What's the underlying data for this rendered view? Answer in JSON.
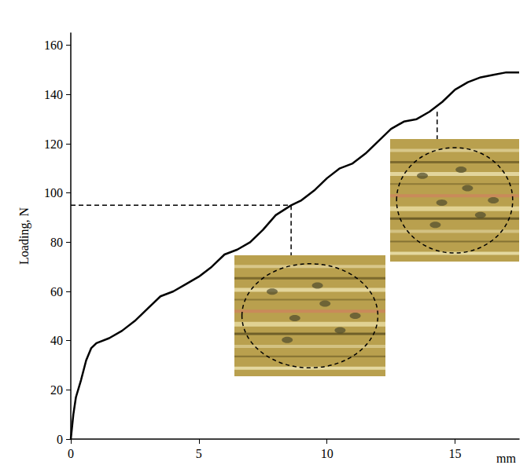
{
  "chart_data": {
    "type": "line",
    "y_label": "Loading, N",
    "x_label": "mm",
    "x": [
      0,
      0.1,
      0.2,
      0.4,
      0.6,
      0.8,
      1.0,
      1.5,
      2,
      2.5,
      3,
      3.5,
      4,
      4.5,
      5,
      5.5,
      6,
      6.5,
      7,
      7.5,
      8,
      8.6,
      9,
      9.5,
      10,
      10.5,
      11,
      11.5,
      12,
      12.5,
      13,
      13.5,
      14,
      14.5,
      15,
      15.5,
      16,
      16.5,
      17,
      17.5
    ],
    "values": [
      0,
      10,
      17,
      24,
      32,
      37,
      39,
      41,
      44,
      48,
      53,
      58,
      60,
      63,
      66,
      70,
      75,
      77,
      80,
      85,
      91,
      95,
      97,
      101,
      106,
      110,
      112,
      116,
      121,
      126,
      129,
      130,
      133,
      137,
      142,
      145,
      147,
      148,
      149,
      149
    ],
    "color": "#000000",
    "xlim": [
      0,
      17.5
    ],
    "ylim": [
      0,
      165
    ],
    "xticks": [
      0,
      5,
      10,
      15
    ],
    "yticks": [
      0,
      20,
      40,
      60,
      80,
      100,
      120,
      140,
      160
    ],
    "grid": false,
    "highlights": [
      {
        "x": 8.6,
        "y": 95
      },
      {
        "x": 14.3,
        "y": 133
      }
    ]
  }
}
